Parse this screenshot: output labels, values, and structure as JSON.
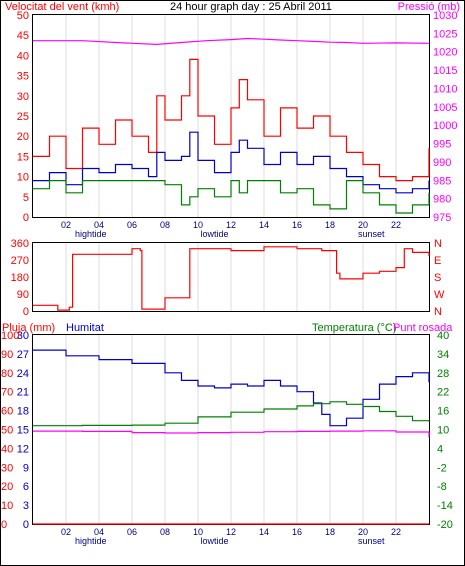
{
  "chart_data": [
    {
      "type": "line",
      "title": "24 hour graph day : 25 Abril 2011",
      "ylabel_left": "Velocitat del vent (kmh)",
      "ylabel_right": "Pressió (mb)",
      "ylim": [
        0,
        50
      ],
      "ylim_right": [
        975,
        1030
      ],
      "yticks": [
        0,
        5,
        10,
        15,
        20,
        25,
        30,
        35,
        40,
        45,
        50
      ],
      "yticks_right": [
        975,
        980,
        985,
        990,
        995,
        1000,
        1005,
        1010,
        1015,
        1020,
        1025,
        1030
      ],
      "x_ticks": [
        "02",
        "04",
        "06",
        "08",
        "10",
        "12",
        "14",
        "16",
        "18",
        "20",
        "22"
      ],
      "x_annotations": [
        "hightide",
        "lowtide",
        "sunset"
      ],
      "grid": true,
      "series": [
        {
          "color": "#ff00ff",
          "x": [
            0,
            3,
            6,
            7.5,
            9,
            10.5,
            12,
            13,
            14,
            15,
            16,
            17,
            18,
            19,
            20,
            22,
            24
          ],
          "values": [
            1023,
            1023,
            1022.3,
            1022.0,
            1022.5,
            1023.0,
            1023.3,
            1023.6,
            1023.4,
            1023.2,
            1023.0,
            1022.8,
            1022.6,
            1022.5,
            1022.3,
            1022.4,
            1022.3
          ]
        },
        {
          "color": "#ff0000",
          "x": [
            0,
            1,
            2,
            3,
            4,
            5,
            6,
            7,
            7.5,
            8,
            9,
            9.5,
            10,
            11,
            12,
            12.5,
            13,
            14,
            15,
            16,
            17,
            18,
            19,
            20,
            21,
            22,
            23,
            24
          ],
          "values": [
            15,
            20,
            12,
            22,
            18,
            24,
            20,
            16,
            30,
            24,
            30,
            39,
            25,
            18,
            27,
            34,
            29,
            20,
            27,
            22,
            25,
            20,
            16,
            13,
            10,
            9,
            10,
            17
          ]
        },
        {
          "color": "#0000cc",
          "x": [
            0,
            1,
            2,
            3,
            4,
            5,
            6,
            7,
            7.5,
            8,
            9,
            9.5,
            10,
            11,
            12,
            12.5,
            13,
            14,
            15,
            16,
            17,
            18,
            19,
            20,
            21,
            22,
            23,
            24
          ],
          "values": [
            9,
            11,
            8,
            12,
            11,
            13,
            12,
            10,
            16,
            14,
            15,
            21,
            14,
            11,
            16,
            19,
            17,
            13,
            16,
            13,
            15,
            12,
            10,
            8,
            7,
            6,
            7,
            9
          ]
        },
        {
          "color": "#008000",
          "x": [
            0,
            1,
            2,
            3,
            4,
            5,
            6,
            7,
            7.5,
            8,
            9,
            9.5,
            10,
            11,
            12,
            12.5,
            13,
            14,
            15,
            16,
            17,
            18,
            19,
            20,
            21,
            22,
            23,
            24
          ],
          "values": [
            7,
            9,
            6,
            9,
            9,
            9,
            9,
            9,
            9,
            8,
            3,
            5,
            7,
            5,
            9,
            6,
            9,
            9,
            6,
            7,
            3,
            2,
            9,
            6,
            3,
            1,
            3,
            6
          ]
        }
      ]
    },
    {
      "type": "line",
      "ylabel_right": "N W S E N",
      "ylim": [
        0,
        360
      ],
      "yticks": [
        0,
        90,
        180,
        270,
        360
      ],
      "right_labels": [
        "N",
        "W",
        "S",
        "E",
        "N"
      ],
      "series": [
        {
          "color": "#ff0000",
          "x": [
            0,
            1.5,
            2.2,
            2.4,
            6,
            6.5,
            6.6,
            8,
            9.5,
            12,
            14,
            16,
            17.5,
            18.4,
            18.6,
            20,
            21,
            22,
            22.5,
            23,
            24
          ],
          "values": [
            30,
            5,
            20,
            300,
            330,
            320,
            10,
            70,
            330,
            320,
            340,
            330,
            320,
            200,
            170,
            200,
            210,
            230,
            330,
            310,
            290
          ]
        }
      ]
    },
    {
      "type": "line",
      "title_left": "Pluja (mm)",
      "title_left2": "Humitat",
      "title_right": "Temperatura (°C)",
      "title_right2": "Punt rosada",
      "ylim_humidity": [
        0,
        100
      ],
      "yticks_humidity": [
        0,
        10,
        20,
        30,
        40,
        50,
        60,
        70,
        80,
        90,
        100
      ],
      "ylim_rain": [
        0,
        30
      ],
      "yticks_rain": [
        0,
        3,
        6,
        9,
        12,
        15,
        18,
        21,
        24,
        27,
        30
      ],
      "ylim_temp": [
        -20,
        40
      ],
      "yticks_temp": [
        -20,
        -14,
        -8,
        -2,
        4,
        10,
        16,
        22,
        28,
        34,
        40
      ],
      "x_ticks": [
        "02",
        "04",
        "06",
        "08",
        "10",
        "12",
        "14",
        "16",
        "18",
        "20",
        "22"
      ],
      "x_annotations": [
        "hightide",
        "lowtide",
        "sunset"
      ],
      "series": [
        {
          "name": "Humitat",
          "color": "#0000cc",
          "x": [
            0,
            2,
            4,
            6,
            8,
            9,
            10,
            11,
            12,
            13,
            14,
            15,
            16,
            17,
            17.5,
            18,
            19,
            20,
            21,
            22,
            23,
            24
          ],
          "values": [
            92,
            89,
            87,
            85,
            80,
            76,
            73,
            72,
            74,
            73,
            76,
            73,
            70,
            64,
            58,
            52,
            56,
            66,
            74,
            78,
            80,
            75
          ]
        },
        {
          "name": "Temperatura (°C)",
          "color": "#008000",
          "x": [
            0,
            3,
            6,
            8,
            10,
            12,
            14,
            16,
            17,
            18,
            19,
            20,
            21,
            22,
            23,
            24
          ],
          "values": [
            11.2,
            11.3,
            11.4,
            12,
            14,
            15.5,
            16.5,
            17.5,
            18.2,
            18.8,
            18,
            17.3,
            15.7,
            14.2,
            12.8,
            12.5
          ]
        },
        {
          "name": "Punt rosada",
          "color": "#ff00ff",
          "x": [
            0,
            3,
            6,
            8,
            10,
            12,
            14,
            16,
            18,
            20,
            22,
            24
          ],
          "values": [
            9.5,
            9.4,
            9.0,
            8.9,
            9.0,
            9.1,
            9.3,
            9.4,
            9.5,
            9.6,
            9.2,
            7.5
          ]
        },
        {
          "name": "Pluja (mm)",
          "color": "#ff0000",
          "x": [
            0,
            24
          ],
          "values": [
            0,
            0
          ]
        }
      ]
    }
  ]
}
